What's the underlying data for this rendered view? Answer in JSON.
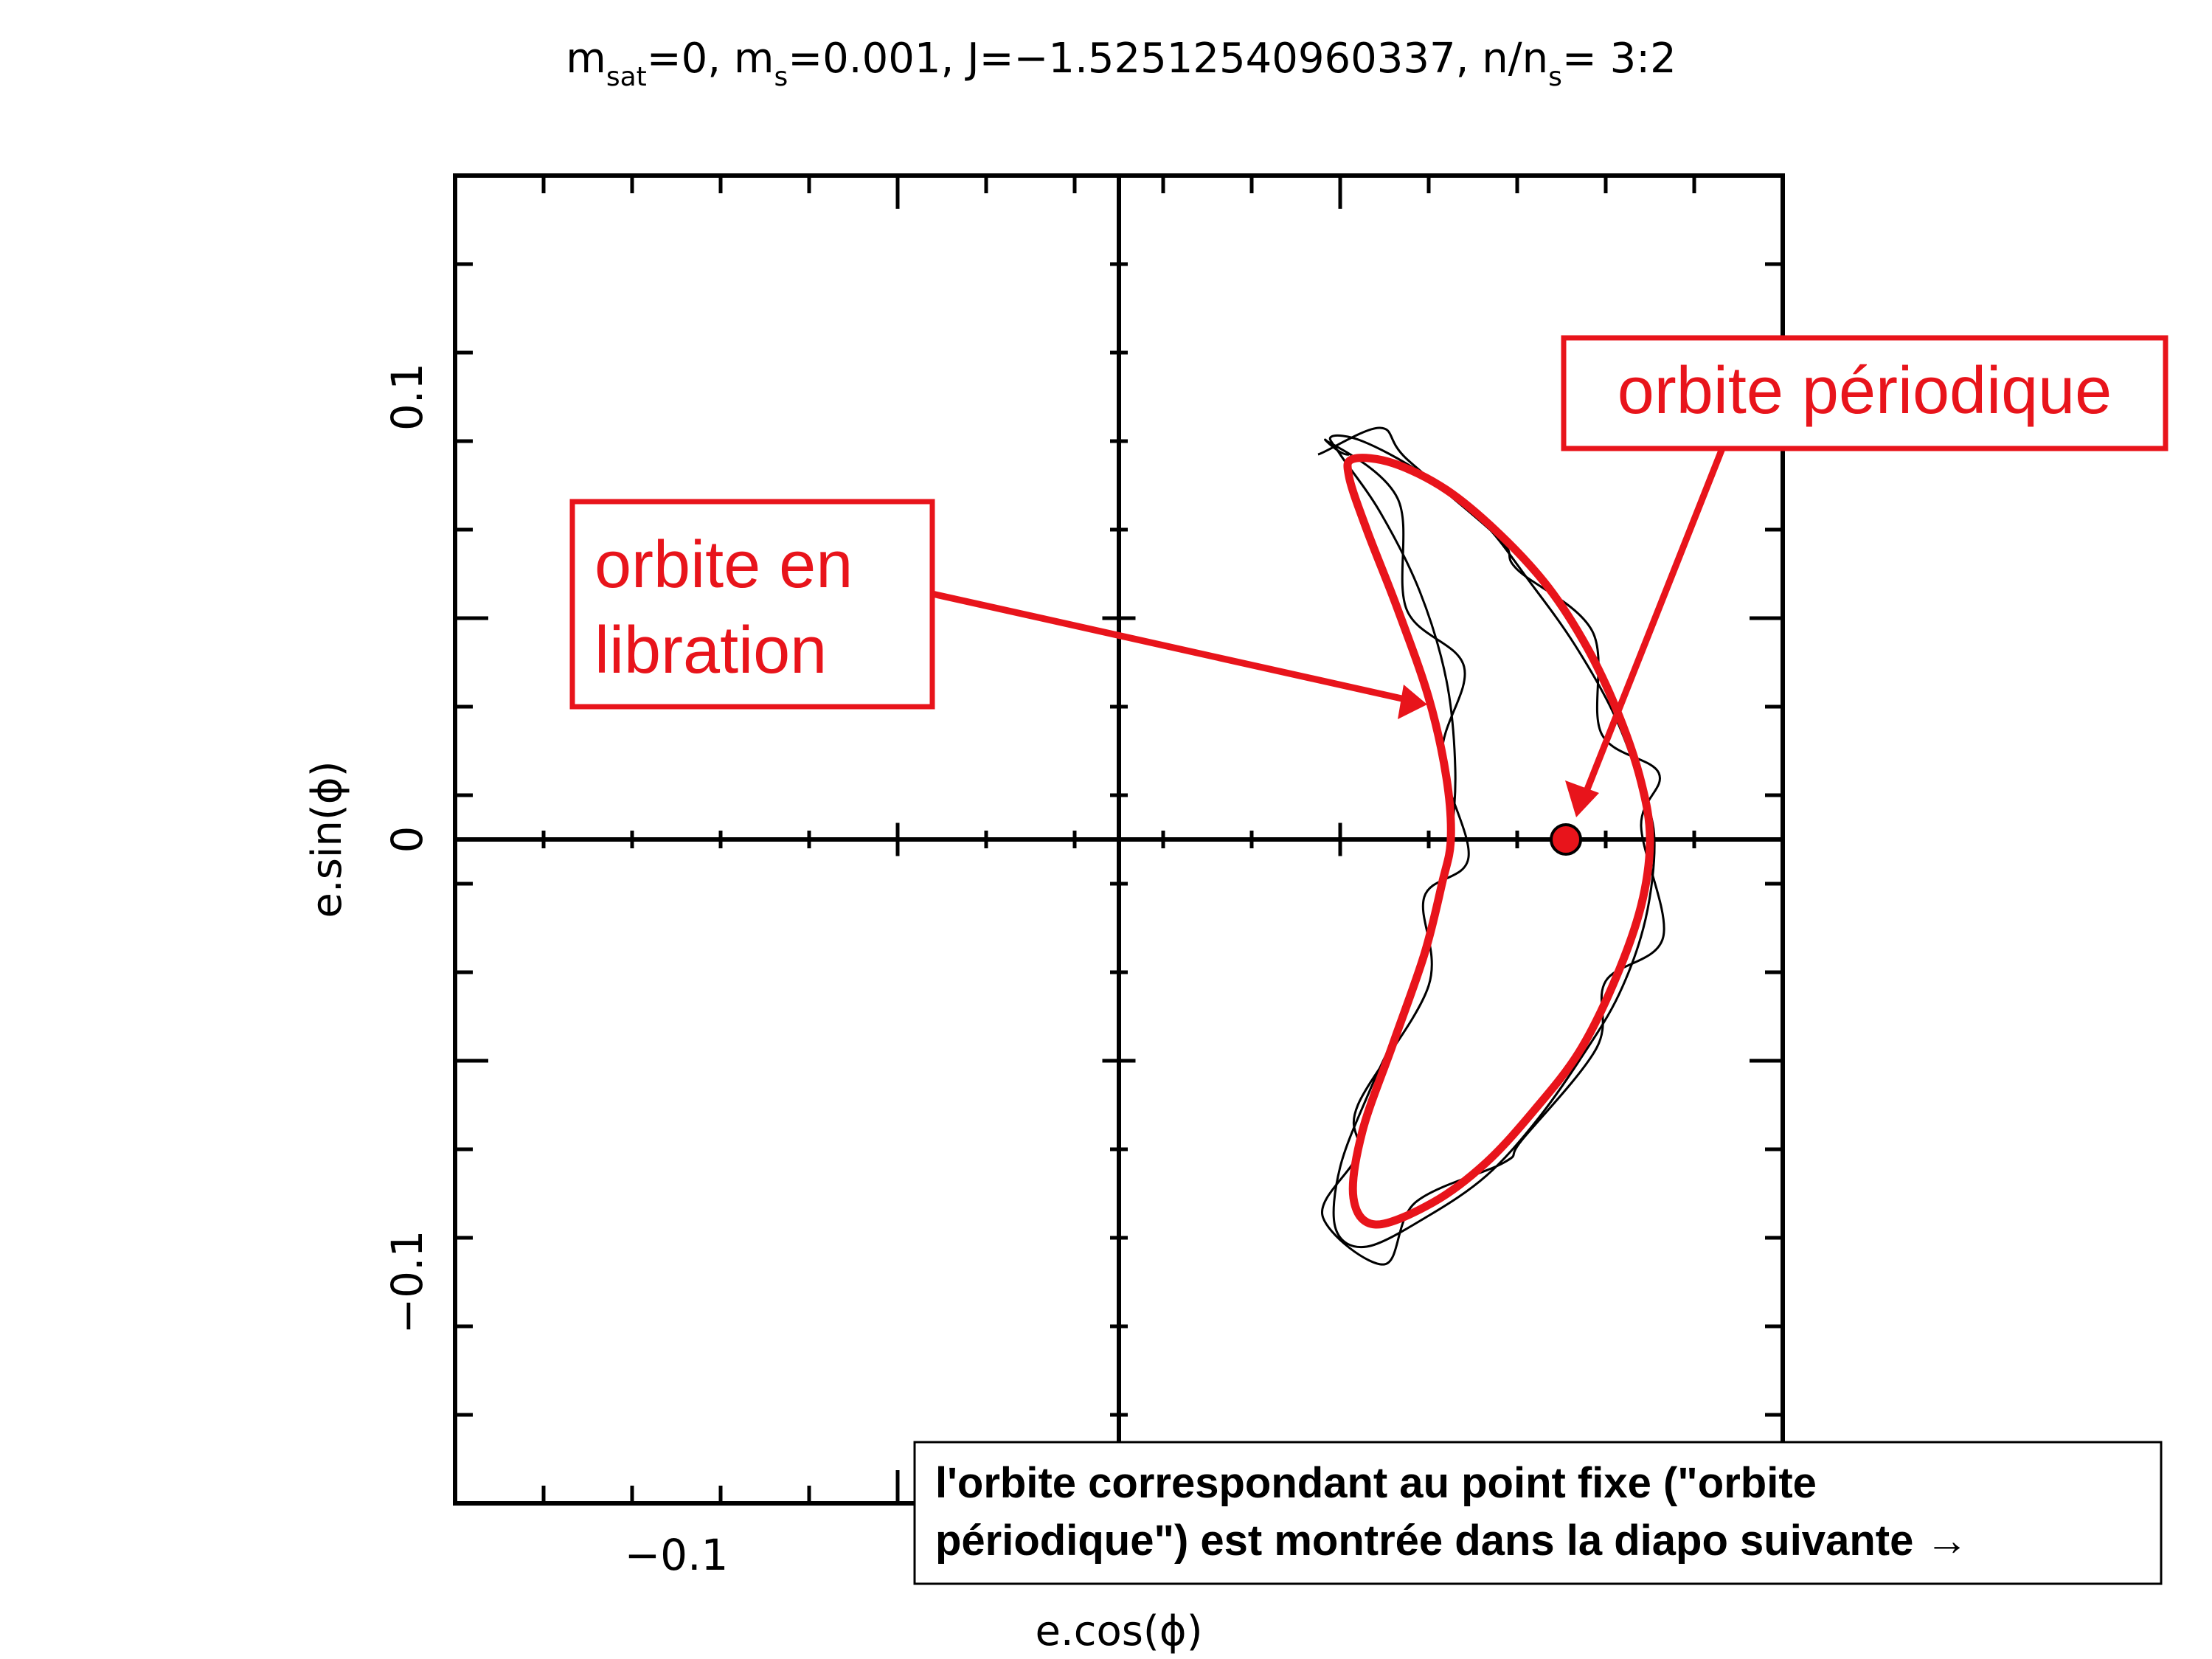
{
  "chart_data": {
    "type": "line",
    "title": {
      "m_sat_sym": "m",
      "m_sat_sub": "sat",
      "m_sat_val": "=0, ",
      "m_s_sym": "m",
      "m_s_sub": "s",
      "m_s_val": "=0.001, J=−1.52512540960337, n/n",
      "n_s_sub": "s",
      "ratio": "= 3:2"
    },
    "xlabel": "e.cos(ϕ)",
    "ylabel": "e.sin(ϕ)",
    "xlim": [
      -0.15,
      0.15
    ],
    "ylim": [
      -0.15,
      0.15
    ],
    "x_tick_labels": [
      {
        "value": -0.1,
        "label": "−0.1"
      }
    ],
    "y_tick_labels": [
      {
        "value": 0.1,
        "label": "0.1"
      },
      {
        "value": 0,
        "label": "0"
      },
      {
        "value": -0.1,
        "label": "−0.1"
      }
    ],
    "series": [
      {
        "kind": "libration-orbit-black",
        "color": "#000000",
        "x": [
          0.048,
          0.055,
          0.068,
          0.082,
          0.093,
          0.103,
          0.112,
          0.118,
          0.121,
          0.119,
          0.113,
          0.104,
          0.094,
          0.083,
          0.07,
          0.056,
          0.049,
          0.05,
          0.057,
          0.066,
          0.072,
          0.075,
          0.076,
          0.074,
          0.068,
          0.059,
          0.05,
          0.048
        ],
        "y": [
          0.091,
          0.09,
          0.083,
          0.072,
          0.058,
          0.044,
          0.028,
          0.012,
          0.0,
          -0.018,
          -0.035,
          -0.05,
          -0.064,
          -0.076,
          -0.085,
          -0.092,
          -0.088,
          -0.074,
          -0.056,
          -0.036,
          -0.016,
          0.0,
          0.016,
          0.036,
          0.056,
          0.074,
          0.087,
          0.091
        ]
      },
      {
        "kind": "periodic-orbit-red",
        "color": "#e8141b",
        "x": [
          0.053,
          0.062,
          0.074,
          0.086,
          0.097,
          0.106,
          0.113,
          0.118,
          0.12,
          0.118,
          0.112,
          0.104,
          0.094,
          0.083,
          0.071,
          0.058,
          0.053,
          0.055,
          0.062,
          0.069,
          0.073,
          0.075,
          0.074,
          0.07,
          0.063,
          0.056,
          0.052,
          0.053
        ],
        "y": [
          0.086,
          0.085,
          0.079,
          0.069,
          0.057,
          0.043,
          0.028,
          0.013,
          0.0,
          -0.015,
          -0.032,
          -0.048,
          -0.061,
          -0.073,
          -0.082,
          -0.087,
          -0.081,
          -0.066,
          -0.046,
          -0.026,
          -0.01,
          0.0,
          0.014,
          0.032,
          0.052,
          0.07,
          0.082,
          0.086
        ]
      }
    ],
    "fixed_point": {
      "x": 0.101,
      "y": 0.0,
      "color": "#e8141b"
    },
    "grid": false,
    "legend": "none"
  },
  "annotations": {
    "periodic_label": "orbite périodique",
    "libration_line1": "orbite en",
    "libration_line2": "libration",
    "note_line1": "l'orbite correspondant au point fixe (\"orbite",
    "note_line2": "périodique\") est montrée dans la diapo suivante →",
    "accent_color": "#e8141b"
  }
}
